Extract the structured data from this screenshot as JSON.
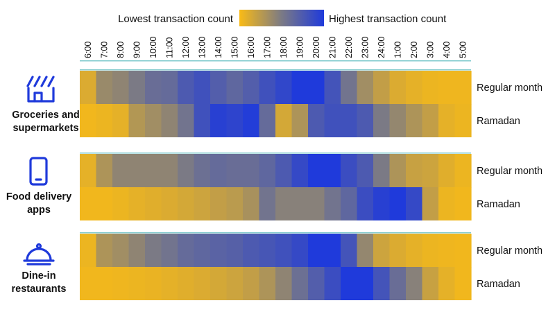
{
  "chart_data": {
    "type": "heatmap",
    "title": "",
    "legend": {
      "low_label": "Lowest transaction count",
      "high_label": "Highest transaction count",
      "colors": [
        "#f9bb16",
        "#7b7a85",
        "#1f3adb"
      ]
    },
    "hours": [
      "6:00",
      "7:00",
      "8:00",
      "9:00",
      "10:00",
      "11:00",
      "12:00",
      "13:00",
      "14:00",
      "15:00",
      "16:00",
      "17:00",
      "18:00",
      "19:00",
      "20:00",
      "21:00",
      "22:00",
      "23:00",
      "24:00",
      "1:00",
      "2:00",
      "3:00",
      "4:00",
      "5:00"
    ],
    "row_labels": [
      "Regular month",
      "Ramadan"
    ],
    "categories": [
      {
        "name_lines": [
          "Groceries and",
          "supermarkets"
        ],
        "icon": "grocery-store-icon",
        "regular": [
          0.12,
          0.38,
          0.42,
          0.5,
          0.6,
          0.62,
          0.75,
          0.82,
          0.72,
          0.65,
          0.72,
          0.82,
          0.9,
          1.0,
          1.0,
          0.8,
          0.55,
          0.35,
          0.22,
          0.12,
          0.08,
          0.05,
          0.04,
          0.04
        ],
        "ramadan": [
          0.03,
          0.05,
          0.08,
          0.28,
          0.35,
          0.42,
          0.55,
          0.82,
          0.95,
          0.92,
          0.98,
          0.62,
          0.15,
          0.3,
          0.75,
          0.82,
          0.82,
          0.75,
          0.5,
          0.4,
          0.3,
          0.22,
          0.08,
          0.05
        ]
      },
      {
        "name_lines": [
          "Food delivery",
          "apps"
        ],
        "icon": "smartphone-icon",
        "regular": [
          0.08,
          0.3,
          0.42,
          0.42,
          0.42,
          0.42,
          0.5,
          0.58,
          0.62,
          0.6,
          0.6,
          0.65,
          0.75,
          0.88,
          1.0,
          1.0,
          0.85,
          0.75,
          0.5,
          0.3,
          0.2,
          0.18,
          0.1,
          0.05
        ],
        "ramadan": [
          0.03,
          0.03,
          0.05,
          0.08,
          0.1,
          0.12,
          0.15,
          0.18,
          0.22,
          0.25,
          0.32,
          0.55,
          0.45,
          0.45,
          0.45,
          0.55,
          0.65,
          0.85,
          0.95,
          1.0,
          0.88,
          0.22,
          0.05,
          0.03
        ]
      },
      {
        "name_lines": [
          "Dine-in",
          "restaurants"
        ],
        "icon": "dining-cloche-icon",
        "regular": [
          0.05,
          0.3,
          0.35,
          0.42,
          0.5,
          0.55,
          0.62,
          0.65,
          0.68,
          0.7,
          0.75,
          0.78,
          0.82,
          0.88,
          1.0,
          1.0,
          0.8,
          0.4,
          0.18,
          0.12,
          0.08,
          0.05,
          0.04,
          0.03
        ],
        "ramadan": [
          0.03,
          0.03,
          0.04,
          0.05,
          0.06,
          0.08,
          0.1,
          0.12,
          0.15,
          0.18,
          0.22,
          0.3,
          0.42,
          0.58,
          0.72,
          0.85,
          1.0,
          1.0,
          0.8,
          0.6,
          0.45,
          0.2,
          0.08,
          0.03
        ]
      }
    ]
  }
}
